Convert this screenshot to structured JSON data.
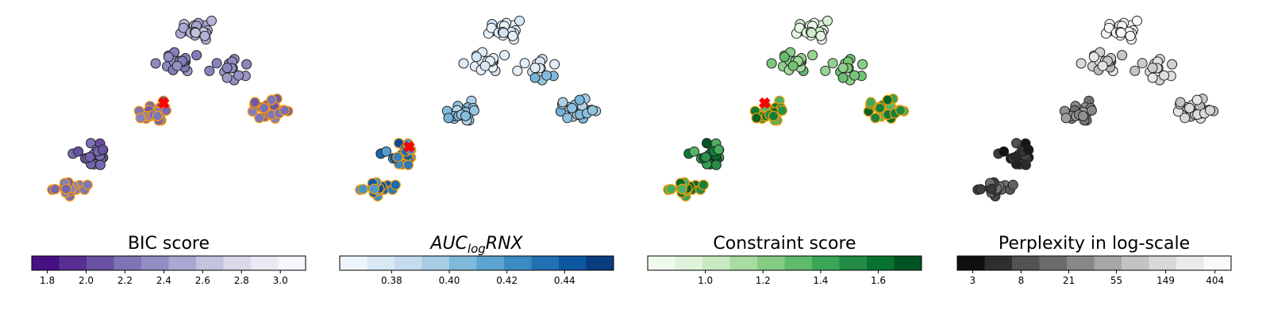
{
  "chart_data": [
    {
      "type": "scatter",
      "title": "BIC score",
      "cmap": "Purples_r",
      "colorbar": {
        "vmin": 1.72,
        "vmax": 3.13,
        "ticks": [
          "1.8",
          "2.0",
          "2.2",
          "2.4",
          "2.6",
          "2.8",
          "3.0"
        ]
      },
      "selected_marker": {
        "x": 0.48,
        "y": 0.55
      },
      "highlight_ranges": [
        {
          "x": [
            0.0,
            0.33
          ],
          "y": [
            0.0,
            0.22
          ]
        },
        {
          "x": [
            0.36,
            0.56
          ],
          "y": [
            0.38,
            0.6
          ]
        },
        {
          "x": [
            0.78,
            1.0
          ],
          "y": [
            0.4,
            0.62
          ]
        }
      ]
    },
    {
      "type": "scatter",
      "title": "AUC",
      "title_sub": "log",
      "title_tail": "RNX",
      "cmap": "Blues",
      "colorbar": {
        "vmin": 0.362,
        "vmax": 0.457,
        "ticks": [
          "0.38",
          "0.40",
          "0.42",
          "0.44"
        ]
      },
      "selected_marker": {
        "x": 0.23,
        "y": 0.32
      },
      "highlight_ranges": [
        {
          "x": [
            0.0,
            0.27
          ],
          "y": [
            0.0,
            0.18
          ]
        },
        {
          "x": [
            0.18,
            0.34
          ],
          "y": [
            0.2,
            0.36
          ]
        }
      ]
    },
    {
      "type": "scatter",
      "title": "Constraint score",
      "cmap": "Greens",
      "colorbar": {
        "vmin": 0.8,
        "vmax": 1.75,
        "ticks": [
          "1.0",
          "1.2",
          "1.4",
          "1.6"
        ]
      },
      "selected_marker": {
        "x": 0.42,
        "y": 0.55
      },
      "highlight_ranges": [
        {
          "x": [
            0.0,
            0.32
          ],
          "y": [
            0.0,
            0.2
          ]
        },
        {
          "x": [
            0.36,
            0.52
          ],
          "y": [
            0.38,
            0.6
          ]
        },
        {
          "x": [
            0.8,
            1.0
          ],
          "y": [
            0.45,
            0.6
          ]
        }
      ]
    },
    {
      "type": "scatter",
      "title": "Perplexity in log-scale",
      "cmap": "Greys_r",
      "colorbar": {
        "vmin": 2.2,
        "vmax": 560,
        "log": true,
        "ticks": [
          "3",
          "8",
          "21",
          "55",
          "149",
          "404"
        ]
      },
      "selected_marker": null,
      "highlight_ranges": []
    }
  ]
}
